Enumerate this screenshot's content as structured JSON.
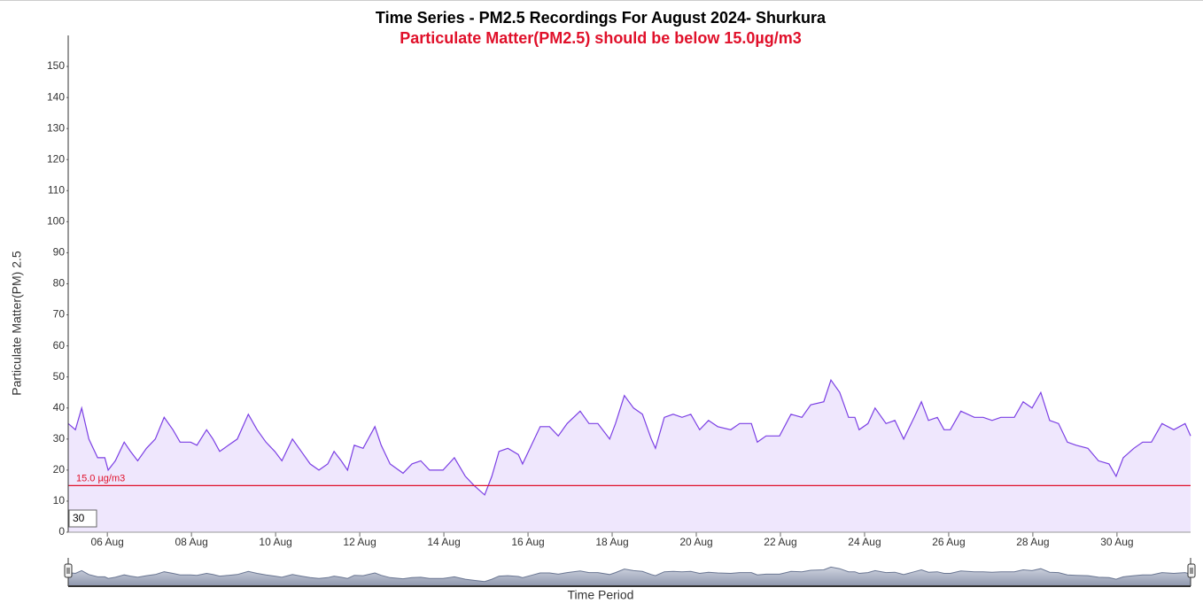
{
  "chart_data": {
    "type": "area",
    "title": "Time Series - PM2.5 Recordings For August 2024- Shurkura",
    "subtitle": "Particulate Matter(PM2.5) should be below 15.0µg/m3",
    "ylabel": "Particulate Matter(PM) 2.5",
    "xlabel": "Time Period",
    "range_input": "30",
    "color": "#7b3fe4",
    "fill": "#efe7fd",
    "threshold": {
      "value": 15,
      "label": "15.0 µg/m3",
      "color": "#e0102a"
    },
    "x": [
      5.07,
      5.24,
      5.39,
      5.56,
      5.77,
      5.94,
      6.02,
      6.19,
      6.4,
      6.55,
      6.72,
      6.93,
      7.14,
      7.35,
      7.56,
      7.73,
      7.98,
      8.13,
      8.36,
      8.51,
      8.67,
      8.88,
      9.09,
      9.35,
      9.56,
      9.77,
      9.98,
      10.15,
      10.4,
      10.61,
      10.82,
      11.03,
      11.24,
      11.39,
      11.56,
      11.71,
      11.87,
      12.08,
      12.36,
      12.51,
      12.72,
      13.03,
      13.24,
      13.45,
      13.66,
      13.98,
      14.25,
      14.51,
      14.72,
      14.97,
      15.14,
      15.31,
      15.52,
      15.77,
      15.87,
      16.08,
      16.29,
      16.51,
      16.72,
      16.93,
      17.24,
      17.45,
      17.66,
      17.94,
      18.08,
      18.29,
      18.51,
      18.72,
      18.93,
      19.03,
      19.24,
      19.45,
      19.66,
      19.87,
      20.08,
      20.29,
      20.51,
      20.82,
      21.03,
      21.31,
      21.45,
      21.66,
      21.98,
      22.25,
      22.51,
      22.72,
      23.03,
      23.2,
      23.41,
      23.62,
      23.77,
      23.87,
      24.08,
      24.25,
      24.51,
      24.72,
      24.93,
      25.18,
      25.35,
      25.52,
      25.73,
      25.89,
      26.04,
      26.29,
      26.61,
      26.82,
      27.03,
      27.24,
      27.56,
      27.77,
      27.98,
      28.19,
      28.4,
      28.61,
      28.82,
      29.03,
      29.31,
      29.56,
      29.81,
      29.98,
      30.15,
      30.4,
      30.61,
      30.82,
      31.07,
      31.35,
      31.62,
      31.75
    ],
    "values": [
      35,
      33,
      40,
      30,
      24,
      24,
      20,
      23,
      29,
      26,
      23,
      27,
      30,
      37,
      33,
      29,
      29,
      28,
      33,
      30,
      26,
      28,
      30,
      38,
      33,
      29,
      26,
      23,
      30,
      26,
      22,
      20,
      22,
      26,
      23,
      20,
      28,
      27,
      34,
      28,
      22,
      19,
      22,
      23,
      20,
      20,
      24,
      18,
      15,
      12,
      18,
      26,
      27,
      25,
      22,
      28,
      34,
      34,
      31,
      35,
      39,
      35,
      35,
      30,
      35,
      44,
      40,
      38,
      30,
      27,
      37,
      38,
      37,
      38,
      33,
      36,
      34,
      33,
      35,
      35,
      29,
      31,
      31,
      38,
      37,
      41,
      42,
      49,
      45,
      37,
      37,
      33,
      35,
      40,
      35,
      36,
      30,
      37,
      42,
      36,
      37,
      33,
      33,
      39,
      37,
      37,
      36,
      37,
      37,
      42,
      40,
      45,
      36,
      35,
      29,
      28,
      27,
      23,
      22,
      18,
      24,
      27,
      29,
      29,
      35,
      33,
      35,
      31
    ],
    "xlim": [
      5.07,
      31.75
    ],
    "xticks": [
      {
        "value": 6,
        "label": "06 Aug"
      },
      {
        "value": 8,
        "label": "08 Aug"
      },
      {
        "value": 10,
        "label": "10 Aug"
      },
      {
        "value": 12,
        "label": "12 Aug"
      },
      {
        "value": 14,
        "label": "14 Aug"
      },
      {
        "value": 16,
        "label": "16 Aug"
      },
      {
        "value": 18,
        "label": "18 Aug"
      },
      {
        "value": 20,
        "label": "20 Aug"
      },
      {
        "value": 22,
        "label": "22 Aug"
      },
      {
        "value": 24,
        "label": "24 Aug"
      },
      {
        "value": 26,
        "label": "26 Aug"
      },
      {
        "value": 28,
        "label": "28 Aug"
      },
      {
        "value": 30,
        "label": "30 Aug"
      }
    ],
    "ylim": [
      0,
      160
    ],
    "yticks": [
      0,
      10,
      20,
      30,
      40,
      50,
      60,
      70,
      80,
      90,
      100,
      110,
      120,
      130,
      140,
      150
    ]
  }
}
